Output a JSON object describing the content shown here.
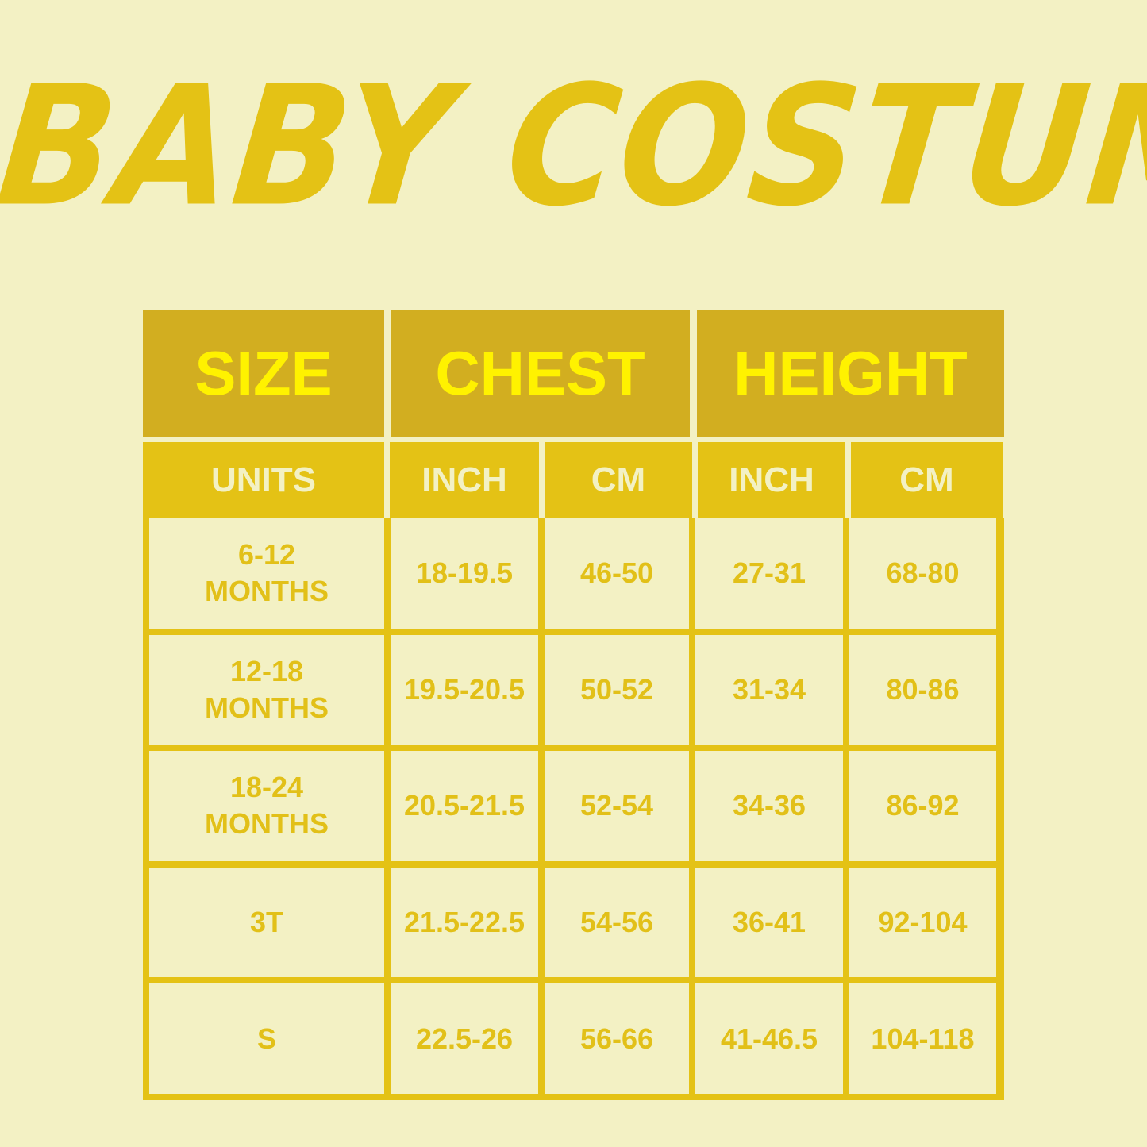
{
  "title": "BABY COSTUME",
  "colors": {
    "background": "#f3f1c4",
    "accent": "#e4c215",
    "header_bg": "#d2ae20",
    "header_text": "#fff200"
  },
  "table": {
    "group_headers": [
      "SIZE",
      "CHEST",
      "HEIGHT"
    ],
    "unit_headers": [
      "UNITS",
      "INCH",
      "CM",
      "INCH",
      "CM"
    ],
    "rows": [
      [
        "6-12\nMONTHS",
        "18-19.5",
        "46-50",
        "27-31",
        "68-80"
      ],
      [
        "12-18\nMONTHS",
        "19.5-20.5",
        "50-52",
        "31-34",
        "80-86"
      ],
      [
        "18-24\nMONTHS",
        "20.5-21.5",
        "52-54",
        "34-36",
        "86-92"
      ],
      [
        "3T",
        "21.5-22.5",
        "54-56",
        "36-41",
        "92-104"
      ],
      [
        "S",
        "22.5-26",
        "56-66",
        "41-46.5",
        "104-118"
      ]
    ]
  }
}
